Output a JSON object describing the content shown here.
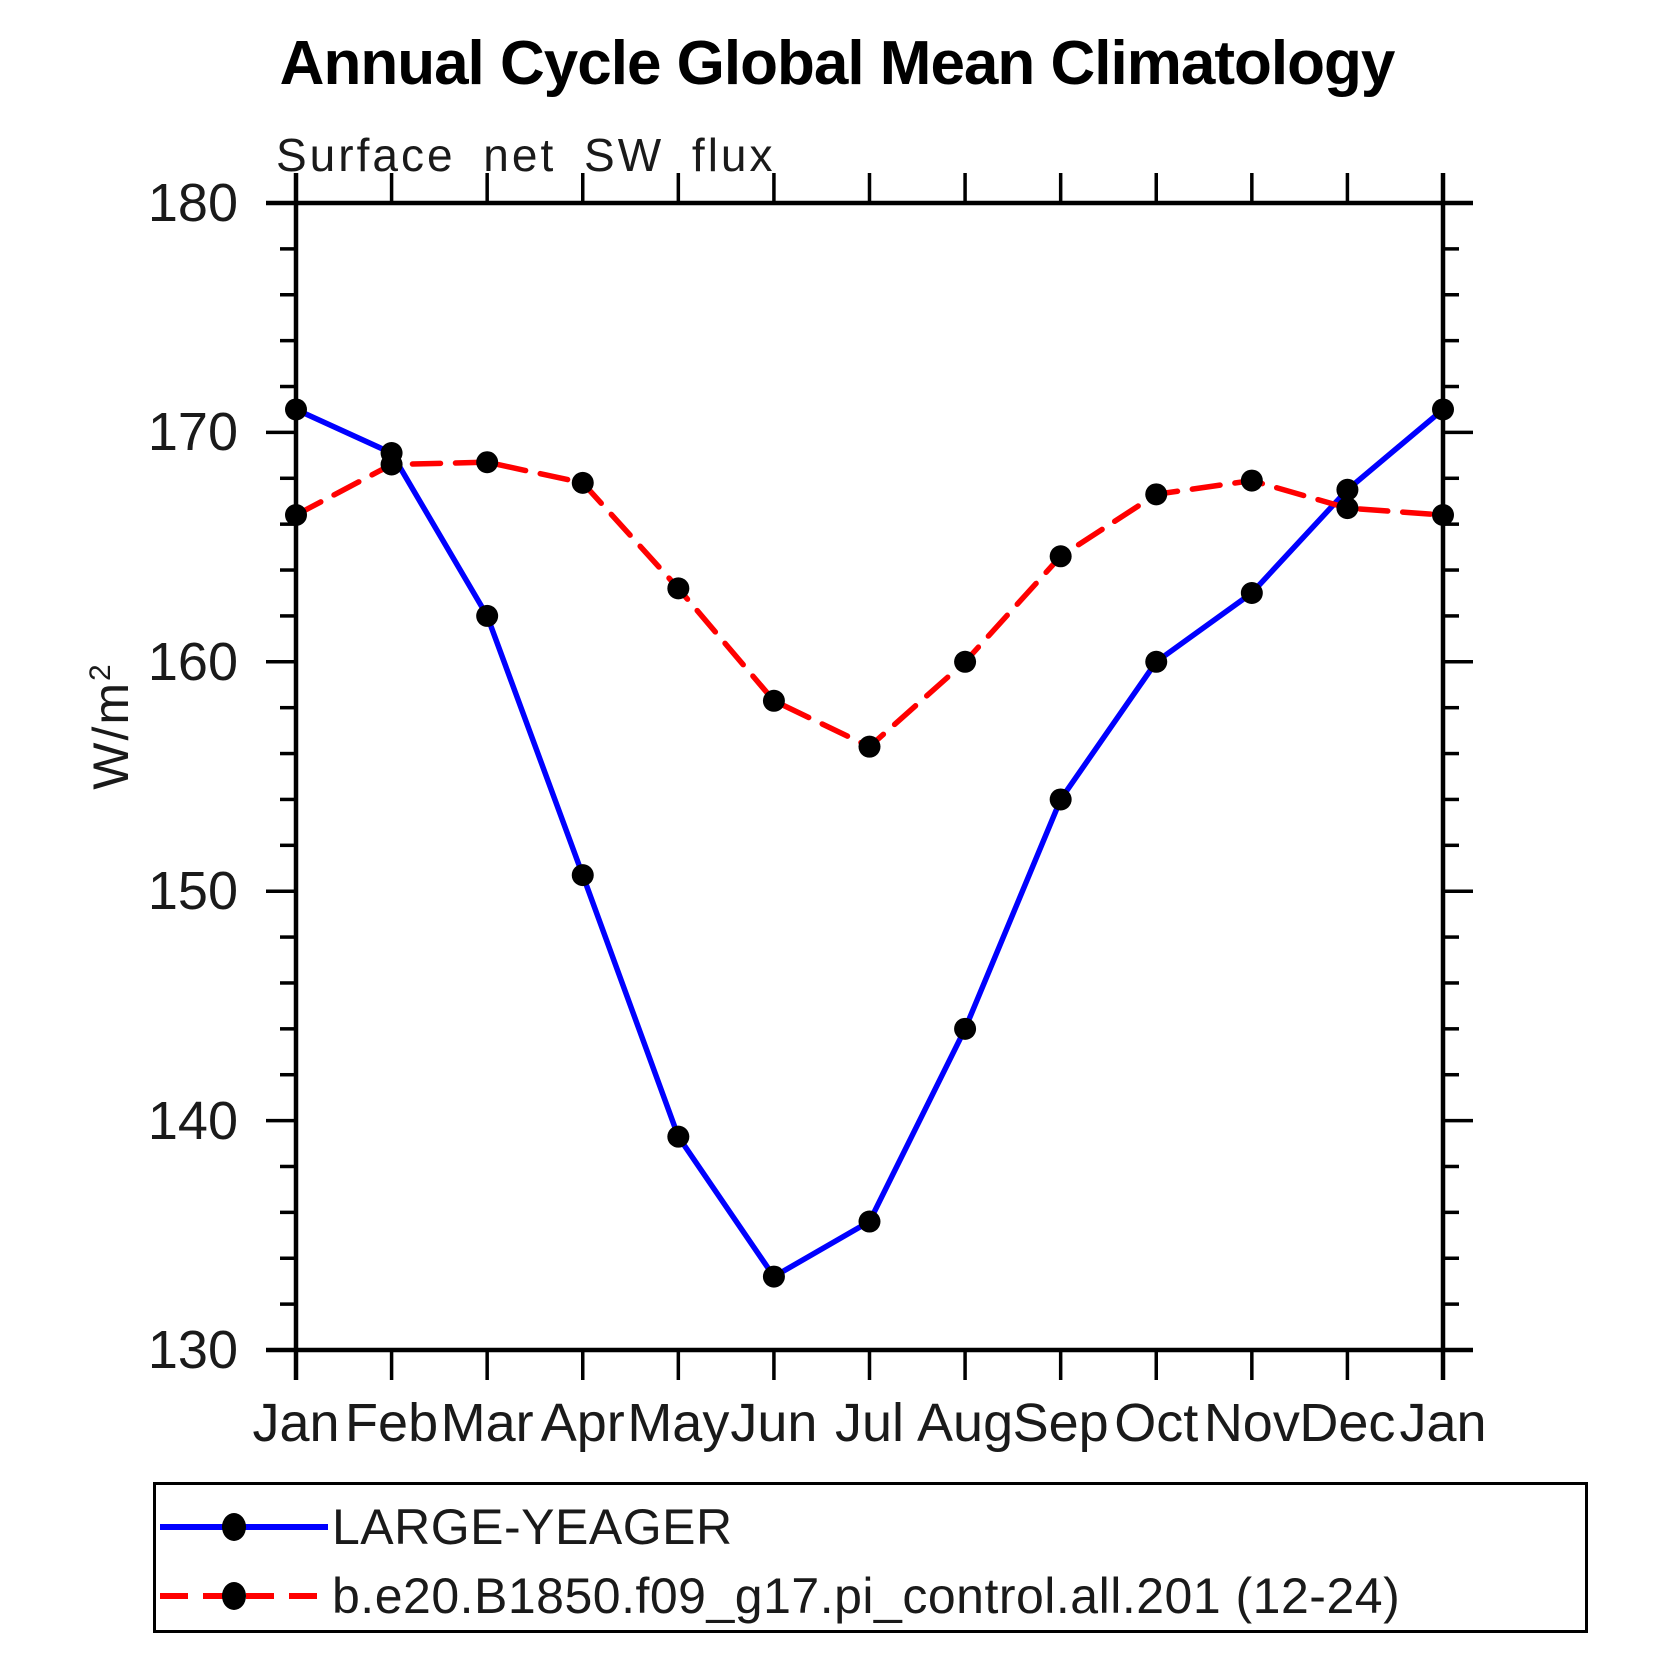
{
  "title": "Annual Cycle Global Mean Climatology",
  "subtitle": "Surface net SW flux",
  "y_axis": {
    "unit_label": "W/m",
    "unit_exponent": "2",
    "tick_labels": [
      "130",
      "140",
      "150",
      "160",
      "170",
      "180"
    ]
  },
  "x_axis": {
    "tick_labels": [
      "Jan",
      "Feb",
      "Mar",
      "Apr",
      "May",
      "Jun",
      "Jul",
      "Aug",
      "Sep",
      "Oct",
      "Nov",
      "Dec",
      "Jan"
    ]
  },
  "colors": {
    "series1": "#0000ff",
    "series2": "#ff0000",
    "marker": "#000000",
    "axis": "#000000"
  },
  "legend": {
    "entries": [
      {
        "label": "LARGE-YEAGER",
        "style": "solid",
        "color": "#0000ff"
      },
      {
        "label": "b.e20.B1850.f09_g17.pi_control.all.201 (12-24)",
        "style": "dashed",
        "color": "#ff0000"
      }
    ]
  },
  "chart_data": {
    "type": "line",
    "title": "Annual Cycle Global Mean Climatology",
    "subtitle": "Surface net SW flux",
    "ylabel": "W/m2",
    "xlabel": "",
    "x": [
      "Jan",
      "Feb",
      "Mar",
      "Apr",
      "May",
      "Jun",
      "Jul",
      "Aug",
      "Sep",
      "Oct",
      "Nov",
      "Dec",
      "Jan"
    ],
    "series": [
      {
        "name": "LARGE-YEAGER",
        "color": "#0000ff",
        "line_style": "solid",
        "marker": "circle",
        "values": [
          171.0,
          169.1,
          162.0,
          150.7,
          139.3,
          133.2,
          135.6,
          144.0,
          154.0,
          160.0,
          163.0,
          167.5,
          171.0
        ]
      },
      {
        "name": "b.e20.B1850.f09_g17.pi_control.all.201 (12-24)",
        "color": "#ff0000",
        "line_style": "dashed",
        "marker": "circle",
        "values": [
          166.4,
          168.6,
          168.7,
          167.8,
          163.2,
          158.3,
          156.3,
          160.0,
          164.6,
          167.3,
          167.9,
          166.7,
          166.4
        ]
      }
    ],
    "ylim": [
      130,
      180
    ],
    "y_major_ticks": [
      130,
      140,
      150,
      160,
      170,
      180
    ],
    "y_minor_step": 2,
    "grid": false,
    "legend_position": "bottom"
  }
}
